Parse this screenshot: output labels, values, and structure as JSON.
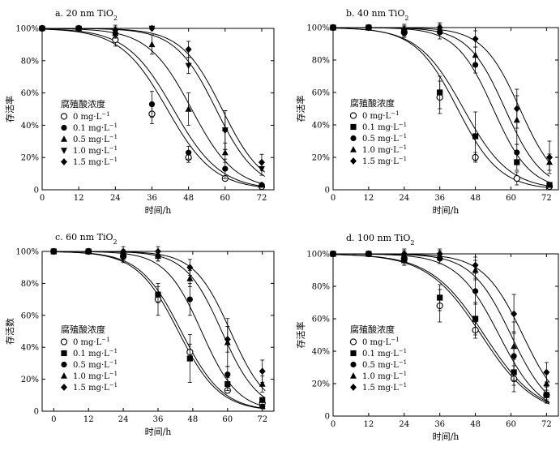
{
  "chart_data": [
    {
      "type": "scatter",
      "title": "a. 20 nm TiO",
      "title_sub": "2",
      "xlabel": "时间/h",
      "ylabel": "存活率",
      "xlim": [
        0,
        76
      ],
      "ylim": [
        0,
        100
      ],
      "xticks": [
        0,
        12,
        24,
        36,
        48,
        60,
        72
      ],
      "yticks": [
        0,
        20,
        40,
        60,
        80,
        100
      ],
      "ytick_labels": [
        "0",
        "20%",
        "40%",
        "60%",
        "80%",
        "100%"
      ],
      "legend_title": "腐殖酸浓度",
      "series": [
        {
          "name": "0 mg·L",
          "name_sup": "−1",
          "marker": "circle-open",
          "x": [
            0,
            12,
            24,
            36,
            48,
            60,
            72
          ],
          "values": [
            100,
            100,
            93,
            47,
            20,
            7,
            2
          ],
          "errors": [
            1,
            1.5,
            4,
            6,
            3,
            2,
            1.5
          ],
          "fit": {
            "t50": 41,
            "k": 0.13
          }
        },
        {
          "name": "0.1 mg·L",
          "name_sup": "−1",
          "marker": "circle",
          "x": [
            0,
            12,
            24,
            36,
            48,
            60,
            72
          ],
          "values": [
            100,
            100,
            97,
            53,
            23,
            13,
            3
          ],
          "errors": [
            1,
            1.5,
            3,
            8,
            4,
            6,
            1.5
          ],
          "fit": {
            "t50": 43,
            "k": 0.13
          }
        },
        {
          "name": "0.5 mg·L",
          "name_sup": "−1",
          "marker": "triangle",
          "x": [
            0,
            12,
            24,
            36,
            48,
            60,
            72
          ],
          "values": [
            100,
            100,
            97,
            90,
            50,
            23,
            3
          ],
          "errors": [
            1,
            1.5,
            3,
            6,
            10,
            6,
            1.5
          ],
          "fit": {
            "t50": 49,
            "k": 0.14
          }
        },
        {
          "name": "1.0 mg·L",
          "name_sup": "−1",
          "marker": "triangle-down",
          "x": [
            0,
            12,
            24,
            36,
            48,
            60,
            72
          ],
          "values": [
            100,
            100,
            98,
            100,
            77,
            37,
            13
          ],
          "errors": [
            1,
            1.5,
            3,
            2,
            5,
            12,
            4
          ],
          "fit": {
            "t50": 57,
            "k": 0.15
          }
        },
        {
          "name": "1.5 mg·L",
          "name_sup": "−1",
          "marker": "diamond",
          "x": [
            0,
            12,
            24,
            36,
            48,
            60,
            72
          ],
          "values": [
            100,
            100,
            99,
            100,
            87,
            37,
            17
          ],
          "errors": [
            1,
            1.5,
            3,
            2,
            5,
            12,
            5
          ],
          "fit": {
            "t50": 59,
            "k": 0.15
          }
        }
      ]
    },
    {
      "type": "scatter",
      "title": "b. 40 nm TiO",
      "title_sub": "2",
      "xlabel": "时间/h",
      "ylabel": "存活率",
      "xlim": [
        0,
        76
      ],
      "ylim": [
        0,
        100
      ],
      "xticks": [
        0,
        12,
        24,
        36,
        48,
        60,
        72
      ],
      "yticks": [
        0,
        20,
        40,
        60,
        80,
        100
      ],
      "ytick_labels": [
        "0",
        "20%",
        "40%",
        "60%",
        "80%",
        "100%"
      ],
      "legend_title": "腐殖酸浓度",
      "series": [
        {
          "name": "0 mg·L",
          "name_sup": "−1",
          "marker": "circle-open",
          "x": [
            0,
            12,
            24,
            36,
            48,
            62,
            73
          ],
          "values": [
            100,
            100,
            97,
            57,
            20,
            7,
            2
          ],
          "errors": [
            1,
            1.5,
            3,
            10,
            3,
            4,
            1.5
          ],
          "fit": {
            "t50": 42,
            "k": 0.14
          }
        },
        {
          "name": "0.1 mg·L",
          "name_sup": "−1",
          "marker": "square",
          "x": [
            0,
            12,
            24,
            36,
            48,
            62,
            73
          ],
          "values": [
            100,
            100,
            98,
            60,
            33,
            17,
            3
          ],
          "errors": [
            1,
            1.5,
            3,
            10,
            15,
            5,
            1.5
          ],
          "fit": {
            "t50": 44,
            "k": 0.13
          }
        },
        {
          "name": "0.5 mg·L",
          "name_sup": "−1",
          "marker": "circle",
          "x": [
            0,
            12,
            24,
            36,
            48,
            62,
            73
          ],
          "values": [
            100,
            100,
            97,
            97,
            77,
            23,
            3
          ],
          "errors": [
            1,
            1.5,
            3,
            4,
            5,
            5,
            1.5
          ],
          "fit": {
            "t50": 54,
            "k": 0.16
          }
        },
        {
          "name": "1.0 mg·L",
          "name_sup": "−1",
          "marker": "triangle",
          "x": [
            0,
            12,
            24,
            36,
            48,
            62,
            73
          ],
          "values": [
            100,
            100,
            98,
            99,
            83,
            43,
            17
          ],
          "errors": [
            1,
            1.5,
            3,
            3,
            5,
            15,
            5
          ],
          "fit": {
            "t50": 58,
            "k": 0.16
          }
        },
        {
          "name": "1.5 mg·L",
          "name_sup": "−1",
          "marker": "diamond",
          "x": [
            0,
            12,
            24,
            36,
            48,
            62,
            73
          ],
          "values": [
            100,
            100,
            99,
            100,
            93,
            50,
            20
          ],
          "errors": [
            1,
            1.5,
            3,
            3,
            5,
            12,
            10
          ],
          "fit": {
            "t50": 63,
            "k": 0.16
          }
        }
      ]
    },
    {
      "type": "scatter",
      "title": "c. 60 nm TiO",
      "title_sub": "2",
      "xlabel": "时间/h",
      "ylabel": "存活数",
      "xlim": [
        -4,
        76
      ],
      "ylim": [
        0,
        100
      ],
      "xticks": [
        0,
        12,
        24,
        36,
        48,
        60,
        72
      ],
      "yticks": [
        0,
        20,
        40,
        60,
        80,
        100
      ],
      "ytick_labels": [
        "0",
        "20%",
        "40%",
        "60%",
        "80%",
        "100%"
      ],
      "legend_title": "腐殖酸浓度",
      "series": [
        {
          "name": "0 mg·L",
          "name_sup": "−1",
          "marker": "circle-open",
          "x": [
            0,
            12,
            24,
            36,
            47,
            60,
            72
          ],
          "values": [
            100,
            100,
            97,
            70,
            37,
            13,
            5
          ],
          "errors": [
            1,
            1.5,
            4,
            10,
            5,
            2,
            2
          ],
          "fit": {
            "t50": 43,
            "k": 0.14
          }
        },
        {
          "name": "0.1 mg·L",
          "name_sup": "−1",
          "marker": "square",
          "x": [
            0,
            12,
            24,
            36,
            47,
            60,
            72
          ],
          "values": [
            100,
            100,
            98,
            73,
            33,
            17,
            7
          ],
          "errors": [
            1,
            1.5,
            3,
            5,
            15,
            4,
            2
          ],
          "fit": {
            "t50": 44,
            "k": 0.14
          }
        },
        {
          "name": "0.5 mg·L",
          "name_sup": "−1",
          "marker": "circle",
          "x": [
            0,
            12,
            24,
            36,
            47,
            60,
            72
          ],
          "values": [
            100,
            100,
            97,
            97,
            70,
            23,
            3
          ],
          "errors": [
            1,
            1.5,
            3,
            3,
            10,
            5,
            1.5
          ],
          "fit": {
            "t50": 51,
            "k": 0.16
          }
        },
        {
          "name": "1.0 mg·L",
          "name_sup": "−1",
          "marker": "triangle",
          "x": [
            0,
            12,
            24,
            36,
            47,
            60,
            72
          ],
          "values": [
            100,
            100,
            98,
            97,
            83,
            43,
            17
          ],
          "errors": [
            1,
            1.5,
            3,
            3,
            5,
            15,
            5
          ],
          "fit": {
            "t50": 58,
            "k": 0.16
          }
        },
        {
          "name": "1.5 mg·L",
          "name_sup": "−1",
          "marker": "diamond",
          "x": [
            0,
            12,
            24,
            36,
            47,
            60,
            72
          ],
          "values": [
            100,
            100,
            100,
            100,
            90,
            45,
            25
          ],
          "errors": [
            1,
            1.5,
            3,
            3,
            5,
            8,
            7
          ],
          "fit": {
            "t50": 61,
            "k": 0.16
          }
        }
      ]
    },
    {
      "type": "scatter",
      "title": "d. 100 nm TiO",
      "title_sub": "2",
      "xlabel": "时间/h",
      "ylabel": "存活率",
      "xlim": [
        0,
        76
      ],
      "ylim": [
        0,
        100
      ],
      "xticks": [
        0,
        12,
        24,
        36,
        48,
        60,
        72
      ],
      "yticks": [
        0,
        20,
        40,
        60,
        80,
        100
      ],
      "ytick_labels": [
        "0",
        "20%",
        "40%",
        "60%",
        "80%",
        "100%"
      ],
      "legend_title": "腐殖酸浓度",
      "series": [
        {
          "name": "0 mg·L",
          "name_sup": "−1",
          "marker": "circle-open",
          "x": [
            0,
            12,
            24,
            36,
            48,
            61,
            72
          ],
          "values": [
            100,
            100,
            97,
            68,
            53,
            23,
            13
          ],
          "errors": [
            1,
            1.5,
            4,
            10,
            5,
            8,
            5
          ],
          "fit": {
            "t50": 50,
            "k": 0.11
          }
        },
        {
          "name": "0.1 mg·L",
          "name_sup": "−1",
          "marker": "square",
          "x": [
            0,
            12,
            24,
            36,
            48,
            61,
            72
          ],
          "values": [
            100,
            100,
            96,
            73,
            60,
            27,
            13
          ],
          "errors": [
            1,
            1.5,
            3,
            8,
            10,
            8,
            5
          ],
          "fit": {
            "t50": 51,
            "k": 0.11
          }
        },
        {
          "name": "0.5 mg·L",
          "name_sup": "−1",
          "marker": "circle",
          "x": [
            0,
            12,
            24,
            36,
            48,
            61,
            72
          ],
          "values": [
            100,
            100,
            98,
            97,
            77,
            37,
            13
          ],
          "errors": [
            1,
            1.5,
            3,
            3,
            8,
            15,
            3
          ],
          "fit": {
            "t50": 56,
            "k": 0.14
          }
        },
        {
          "name": "1.0 mg·L",
          "name_sup": "−1",
          "marker": "triangle",
          "x": [
            0,
            12,
            24,
            36,
            48,
            61,
            72
          ],
          "values": [
            100,
            100,
            99,
            99,
            90,
            43,
            20
          ],
          "errors": [
            1,
            1.5,
            3,
            3,
            6,
            15,
            6
          ],
          "fit": {
            "t50": 60,
            "k": 0.15
          }
        },
        {
          "name": "1.5 mg·L",
          "name_sup": "−1",
          "marker": "diamond",
          "x": [
            0,
            12,
            24,
            36,
            48,
            61,
            72
          ],
          "values": [
            100,
            100,
            100,
            100,
            93,
            63,
            27
          ],
          "errors": [
            1,
            1.5,
            3,
            3,
            5,
            12,
            6
          ],
          "fit": {
            "t50": 64,
            "k": 0.15
          }
        }
      ]
    }
  ]
}
